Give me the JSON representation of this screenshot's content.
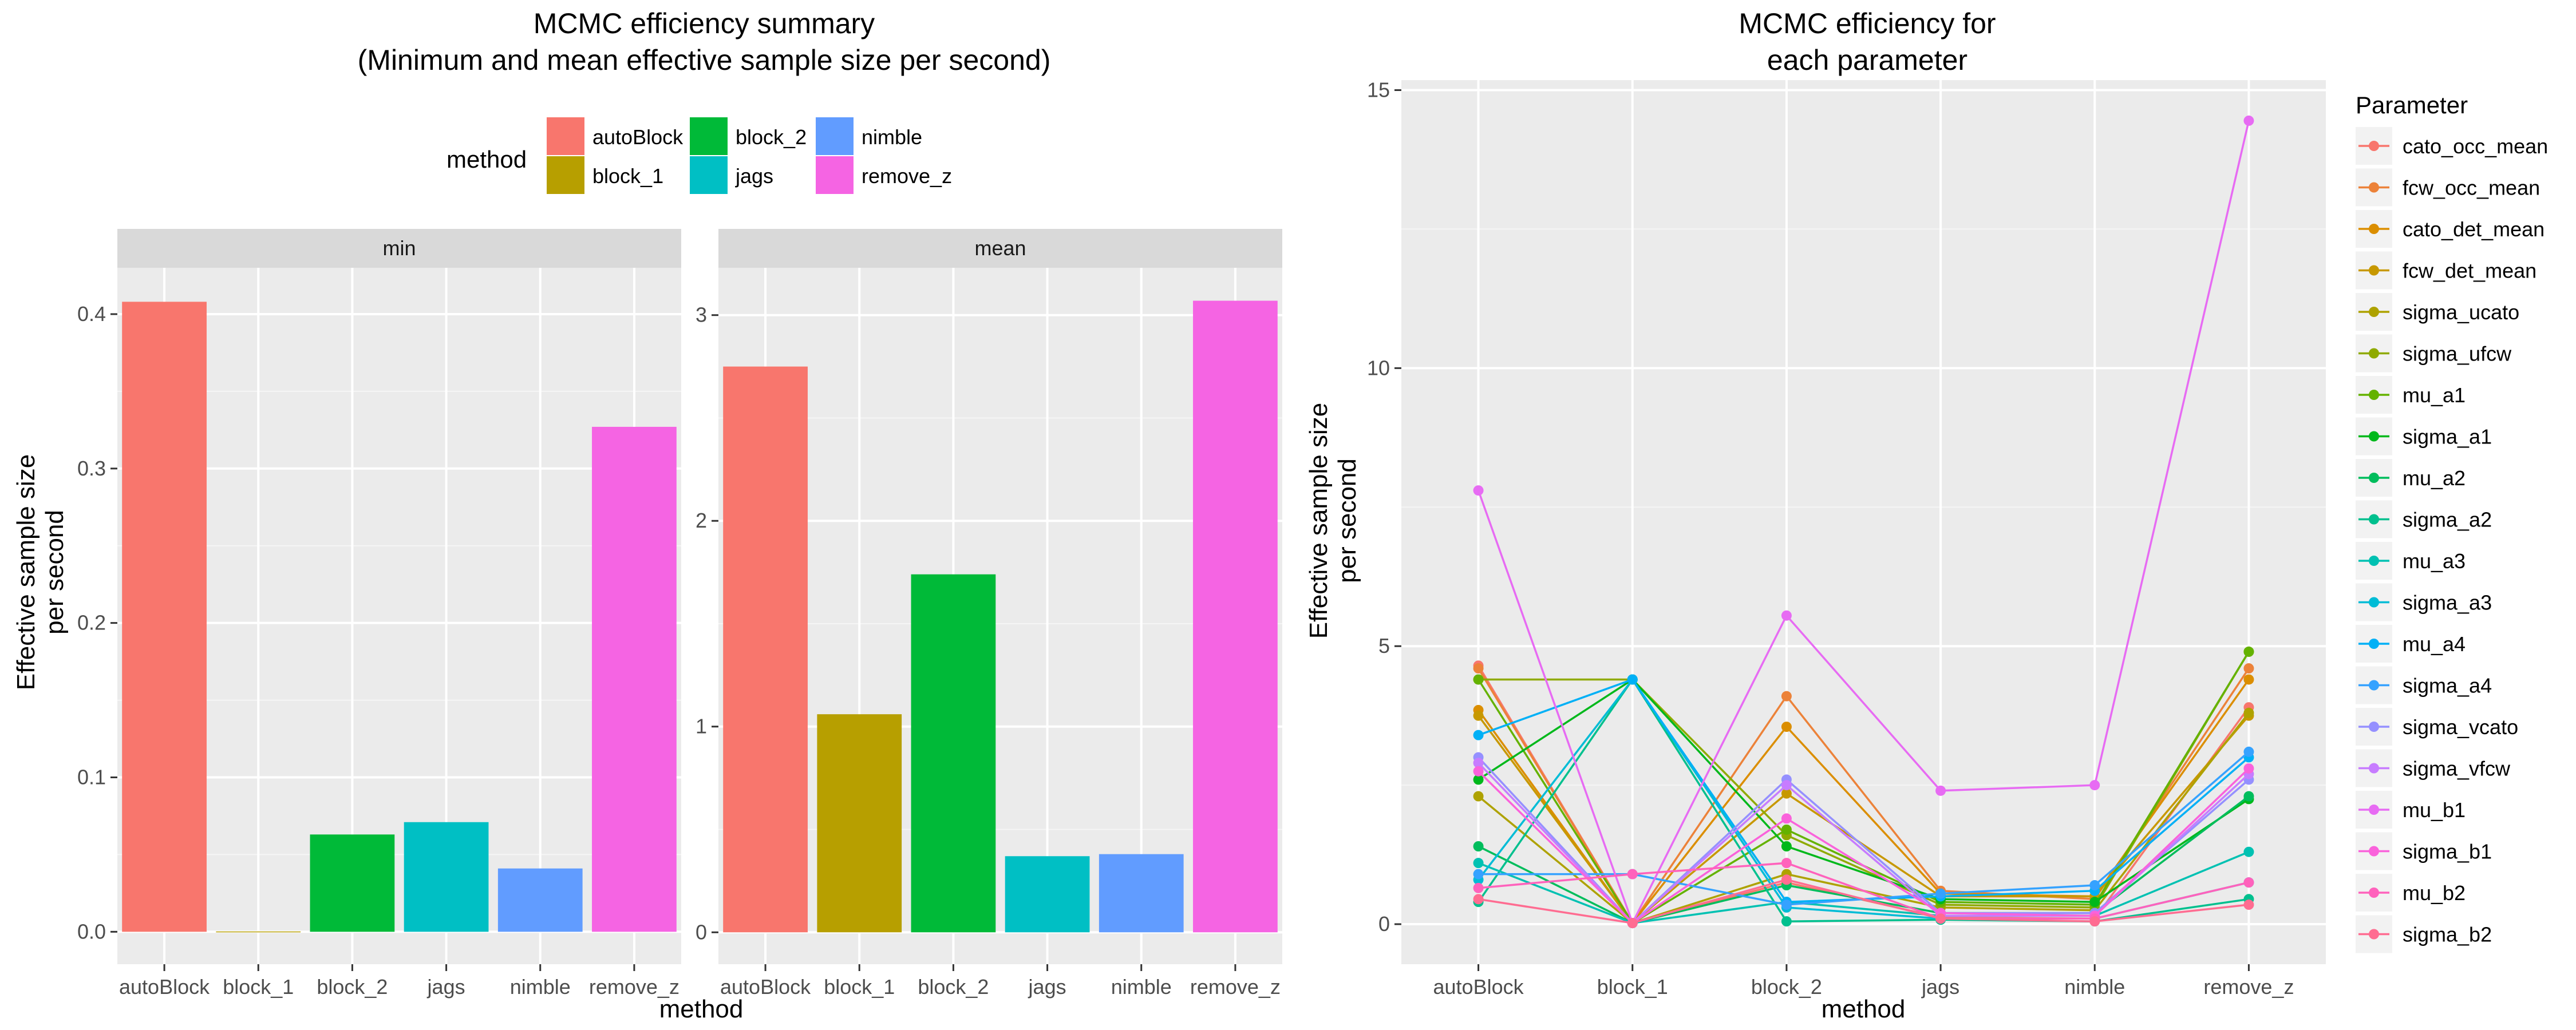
{
  "colors": {
    "panel_bg": "#EBEBEB",
    "strip_bg": "#D9D9D9",
    "grid_major": "#FFFFFF",
    "text_dark": "#000000",
    "text_axis": "#4D4D4D",
    "tick": "#333333"
  },
  "chart_data": [
    {
      "type": "bar",
      "title": "MCMC efficiency summary\n(Minimum and mean effective sample size per second)",
      "xlabel": "method",
      "ylabel": "Effective sample size\nper second",
      "categories": [
        "autoBlock",
        "block_1",
        "block_2",
        "jags",
        "nimble",
        "remove_z"
      ],
      "category_colors": [
        "#F8766D",
        "#B79F00",
        "#00BA38",
        "#00BFC4",
        "#619CFF",
        "#F564E3"
      ],
      "legend": {
        "title": "method",
        "position": "top",
        "entries": [
          "autoBlock",
          "block_1",
          "block_2",
          "jags",
          "nimble",
          "remove_z"
        ]
      },
      "grid": true,
      "facets": [
        {
          "label": "min",
          "values": [
            0.408,
            0.0002,
            0.063,
            0.071,
            0.041,
            0.327
          ],
          "ylim": [
            -0.021,
            0.43
          ],
          "yticks": [
            "0.0",
            "0.1",
            "0.2",
            "0.3",
            "0.4"
          ],
          "ytick_values": [
            0,
            0.1,
            0.2,
            0.3,
            0.4
          ]
        },
        {
          "label": "mean",
          "values": [
            2.75,
            1.06,
            1.74,
            0.37,
            0.38,
            3.07
          ],
          "ylim": [
            -0.155,
            3.23
          ],
          "yticks": [
            "0",
            "1",
            "2",
            "3"
          ],
          "ytick_values": [
            0,
            1,
            2,
            3
          ]
        }
      ]
    },
    {
      "type": "line",
      "title": "MCMC efficiency for\neach parameter",
      "xlabel": "method",
      "ylabel": "Effective sample size\nper second",
      "categories": [
        "autoBlock",
        "block_1",
        "block_2",
        "jags",
        "nimble",
        "remove_z"
      ],
      "ylim": [
        -0.72,
        15.18
      ],
      "yticks": [
        "0",
        "5",
        "10",
        "15"
      ],
      "ytick_values": [
        0,
        5,
        10,
        15
      ],
      "grid": true,
      "legend": {
        "title": "Parameter",
        "position": "right"
      },
      "series": [
        {
          "name": "cato_occ_mean",
          "color": "#F8766D",
          "values": [
            4.65,
            0.02,
            0.75,
            0.12,
            0.1,
            3.9
          ]
        },
        {
          "name": "fcw_occ_mean",
          "color": "#EC8239",
          "values": [
            4.6,
            0.02,
            4.1,
            0.6,
            0.45,
            4.6
          ]
        },
        {
          "name": "cato_det_mean",
          "color": "#DB8E00",
          "values": [
            3.85,
            0.02,
            3.55,
            0.55,
            0.5,
            4.4
          ]
        },
        {
          "name": "fcw_det_mean",
          "color": "#C79800",
          "values": [
            3.75,
            0.02,
            2.35,
            0.5,
            0.5,
            3.75
          ]
        },
        {
          "name": "sigma_ucato",
          "color": "#AEA200",
          "values": [
            2.3,
            0.02,
            0.9,
            0.3,
            0.25,
            3.8
          ]
        },
        {
          "name": "sigma_ufcw",
          "color": "#8FAA00",
          "values": [
            4.4,
            4.4,
            1.6,
            0.35,
            0.3,
            4.9
          ]
        },
        {
          "name": "mu_a1",
          "color": "#64B200",
          "values": [
            4.4,
            0.02,
            1.7,
            0.4,
            0.35,
            4.9
          ]
        },
        {
          "name": "sigma_a1",
          "color": "#00B81B",
          "values": [
            2.6,
            4.4,
            1.4,
            0.45,
            0.4,
            2.25
          ]
        },
        {
          "name": "mu_a2",
          "color": "#00BD5C",
          "values": [
            1.4,
            0.02,
            0.7,
            0.2,
            0.2,
            2.3
          ]
        },
        {
          "name": "sigma_a2",
          "color": "#00C08E",
          "values": [
            0.4,
            4.4,
            0.05,
            0.08,
            0.05,
            0.45
          ]
        },
        {
          "name": "mu_a3",
          "color": "#00C1B2",
          "values": [
            1.1,
            0.02,
            0.4,
            0.15,
            0.15,
            1.3
          ]
        },
        {
          "name": "sigma_a3",
          "color": "#00BCD6",
          "values": [
            0.8,
            4.4,
            0.3,
            0.1,
            0.1,
            0.75
          ]
        },
        {
          "name": "mu_a4",
          "color": "#00B0F6",
          "values": [
            3.4,
            4.4,
            0.4,
            0.5,
            0.6,
            3.0
          ]
        },
        {
          "name": "sigma_a4",
          "color": "#35A2FF",
          "values": [
            0.9,
            0.9,
            0.35,
            0.55,
            0.7,
            3.1
          ]
        },
        {
          "name": "sigma_vcato",
          "color": "#9590FF",
          "values": [
            3.0,
            0.02,
            2.6,
            0.2,
            0.2,
            2.6
          ]
        },
        {
          "name": "sigma_vfcw",
          "color": "#C77CFF",
          "values": [
            2.9,
            0.02,
            2.5,
            0.15,
            0.15,
            2.7
          ]
        },
        {
          "name": "mu_b1",
          "color": "#E76BF3",
          "values": [
            7.8,
            0.02,
            5.55,
            2.4,
            2.5,
            14.45
          ]
        },
        {
          "name": "sigma_b1",
          "color": "#FA62DB",
          "values": [
            2.75,
            0.02,
            1.9,
            0.2,
            0.15,
            2.8
          ]
        },
        {
          "name": "mu_b2",
          "color": "#FF62BC",
          "values": [
            0.65,
            0.9,
            1.1,
            0.1,
            0.1,
            0.75
          ]
        },
        {
          "name": "sigma_b2",
          "color": "#FF6C91",
          "values": [
            0.45,
            0.02,
            0.8,
            0.1,
            0.05,
            0.35
          ]
        }
      ]
    }
  ]
}
